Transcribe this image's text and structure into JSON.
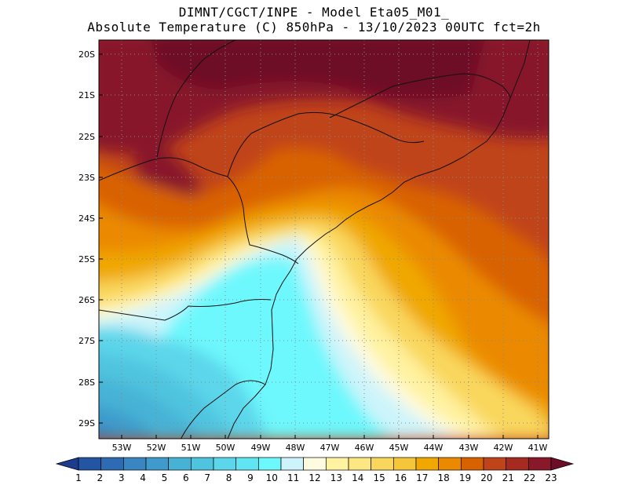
{
  "header": {
    "line1": "DIMNT/CGCT/INPE -  Model Eta05_M01_",
    "line2": "Absolute Temperature (C) 850hPa -  13/10/2023 00UTC fct=2h"
  },
  "map": {
    "lat_labels": [
      "20S",
      "21S",
      "22S",
      "23S",
      "24S",
      "25S",
      "26S",
      "27S",
      "28S",
      "29S"
    ],
    "lon_labels": [
      "53W",
      "52W",
      "51W",
      "50W",
      "49W",
      "48W",
      "47W",
      "46W",
      "45W",
      "44W",
      "43W",
      "42W",
      "41W"
    ]
  },
  "colorbar": {
    "labels": [
      "1",
      "2",
      "3",
      "4",
      "5",
      "6",
      "7",
      "8",
      "9",
      "10",
      "11",
      "12",
      "13",
      "14",
      "15",
      "16",
      "17",
      "18",
      "19",
      "20",
      "21",
      "22",
      "23"
    ],
    "colors": [
      "#1c3c8e",
      "#2455a3",
      "#2d6cb3",
      "#3a86c2",
      "#3e9bcb",
      "#46b2d6",
      "#4fc4df",
      "#5bd6ea",
      "#5fe6f2",
      "#6df8fd",
      "#cdf4fb",
      "#fffbe0",
      "#fff2a0",
      "#fde783",
      "#f9d75d",
      "#f5c53a",
      "#f0a800",
      "#eb8a00",
      "#d96200",
      "#c0441a",
      "#a52a20",
      "#88182a",
      "#6e0d28"
    ]
  }
}
